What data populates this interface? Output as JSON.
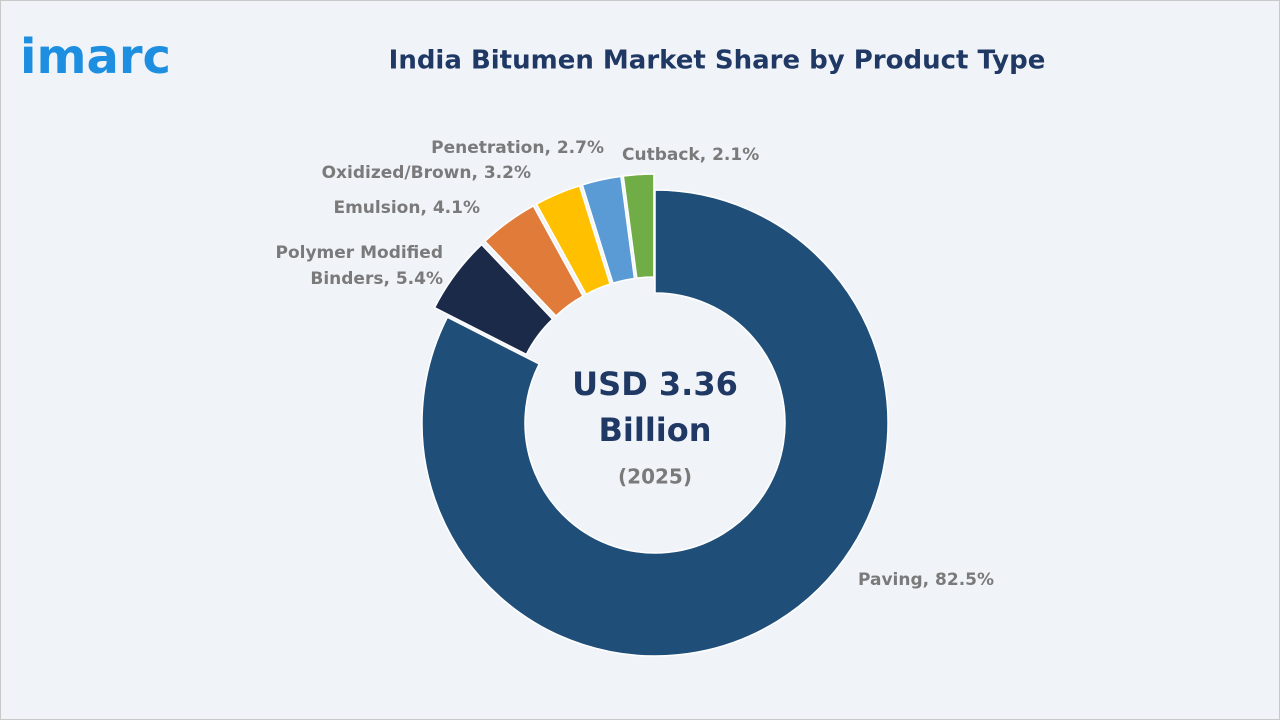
{
  "logo": "imarc",
  "chart_data": {
    "type": "donut",
    "title": "India Bitumen Market Share by Product Type",
    "values": [
      82.5,
      5.4,
      4.1,
      3.2,
      2.7,
      2.1
    ],
    "value_labels": [
      [
        "Paving, 82.5%"
      ],
      [
        "Polymer Modified",
        "Binders, 5.4%"
      ],
      [
        "Emulsion, 4.1%"
      ],
      [
        "Oxidized/Brown, 3.2%"
      ],
      [
        "Penetration, 2.7%"
      ],
      [
        "Cutback, 2.1%"
      ]
    ],
    "colors": [
      "#1f4e79",
      "#1c2a4a",
      "#e07b39",
      "#ffc000",
      "#5b9bd5",
      "#70ad47"
    ],
    "center_text": [
      "USD 3.36",
      "Billion",
      "(2025)"
    ]
  }
}
